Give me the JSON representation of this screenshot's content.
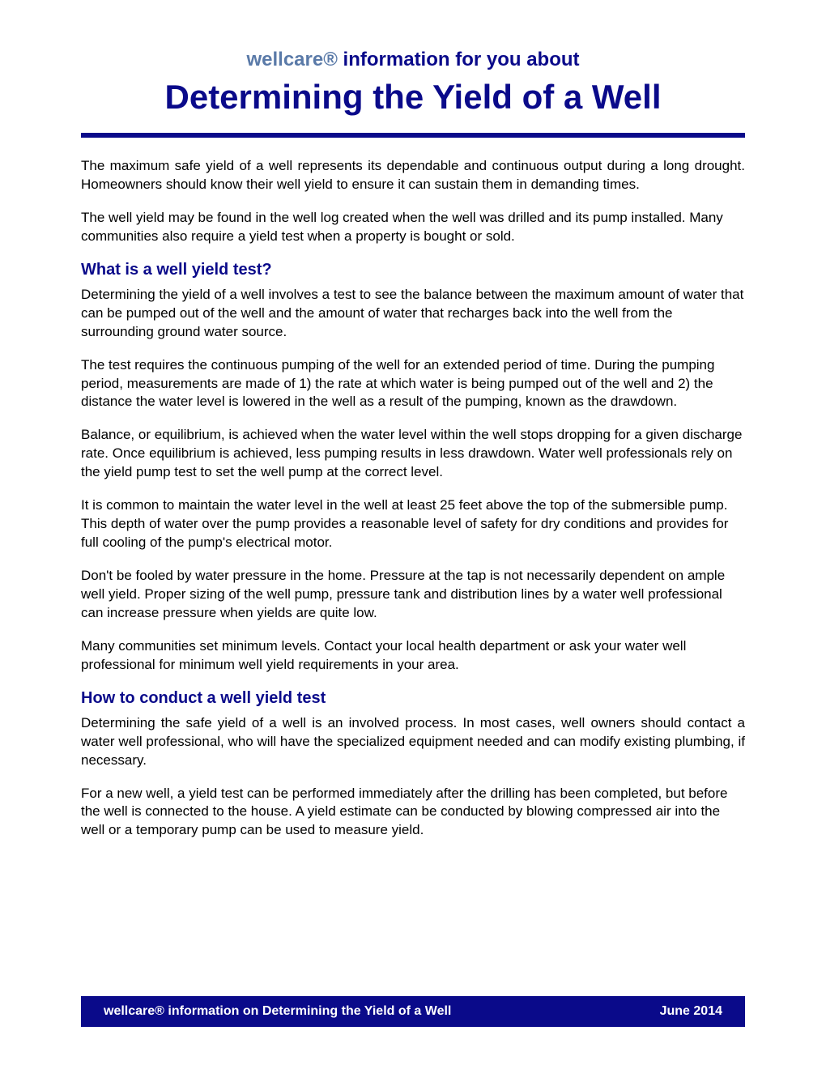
{
  "header": {
    "brand": "wellcare®",
    "tagline": " information for you about",
    "title": "Determining the Yield of a Well"
  },
  "intro": {
    "p1": "The maximum safe yield of a well represents its dependable and continuous output during a long drought. Homeowners should know their well yield to ensure it can sustain them in demanding times.",
    "p2": "The well yield may be found in the well log created when the well was drilled and its pump installed. Many communities also require a yield test when a property is bought or sold."
  },
  "section1": {
    "heading": "What is a well yield test?",
    "p1": "Determining the yield of a well involves a test to see the balance between the maximum amount of water that can be pumped out of the well and the amount of water that recharges back into the well from the surrounding ground water source.",
    "p2": "The test requires the continuous pumping of the well for an extended period of time. During the pumping period, measurements are made of 1) the rate at which water is being pumped out of the well and 2) the distance the water level is lowered in the well as a result of the pumping, known as the drawdown.",
    "p3": "Balance, or equilibrium, is achieved when the water level within the well stops dropping for a given discharge rate. Once equilibrium is achieved, less pumping results in less drawdown. Water well professionals rely on the yield pump test to set the well pump at the correct level.",
    "p4": "It is common to maintain the water level in the well at least 25 feet above the top of the submersible pump. This depth of water over the pump provides a reasonable level of safety for dry conditions and provides for full cooling of the pump's electrical motor.",
    "p5": "Don't be fooled by water pressure in the home. Pressure at the tap is not necessarily dependent on ample well yield. Proper sizing of the well pump, pressure tank and distribution lines by a water well professional can increase pressure when yields are quite low.",
    "p6": "Many communities set minimum levels. Contact your local health department or ask your water well professional for minimum well yield requirements in your area."
  },
  "section2": {
    "heading": "How to conduct a well yield test",
    "p1": "Determining the safe yield of a well is an involved process. In most cases, well owners should contact a water well professional, who will have the specialized equipment needed and can modify existing plumbing, if necessary.",
    "p2": "For a new well, a yield test can be performed immediately after the drilling has been completed, but before the well is connected to the house. A yield estimate can be conducted by blowing compressed air into the well or a temporary pump can be used to measure yield."
  },
  "footer": {
    "brand": "wellcare®",
    "text": " information on Determining the Yield of a Well",
    "date": "June 2014"
  },
  "colors": {
    "primary": "#0a0a8a",
    "brand_muted": "#5a7aa8",
    "text": "#000000",
    "background": "#ffffff",
    "footer_text": "#ffffff"
  },
  "typography": {
    "body_fontsize": 17,
    "heading_fontsize": 20,
    "title_fontsize": 42,
    "tagline_fontsize": 24,
    "footer_fontsize": 16
  }
}
